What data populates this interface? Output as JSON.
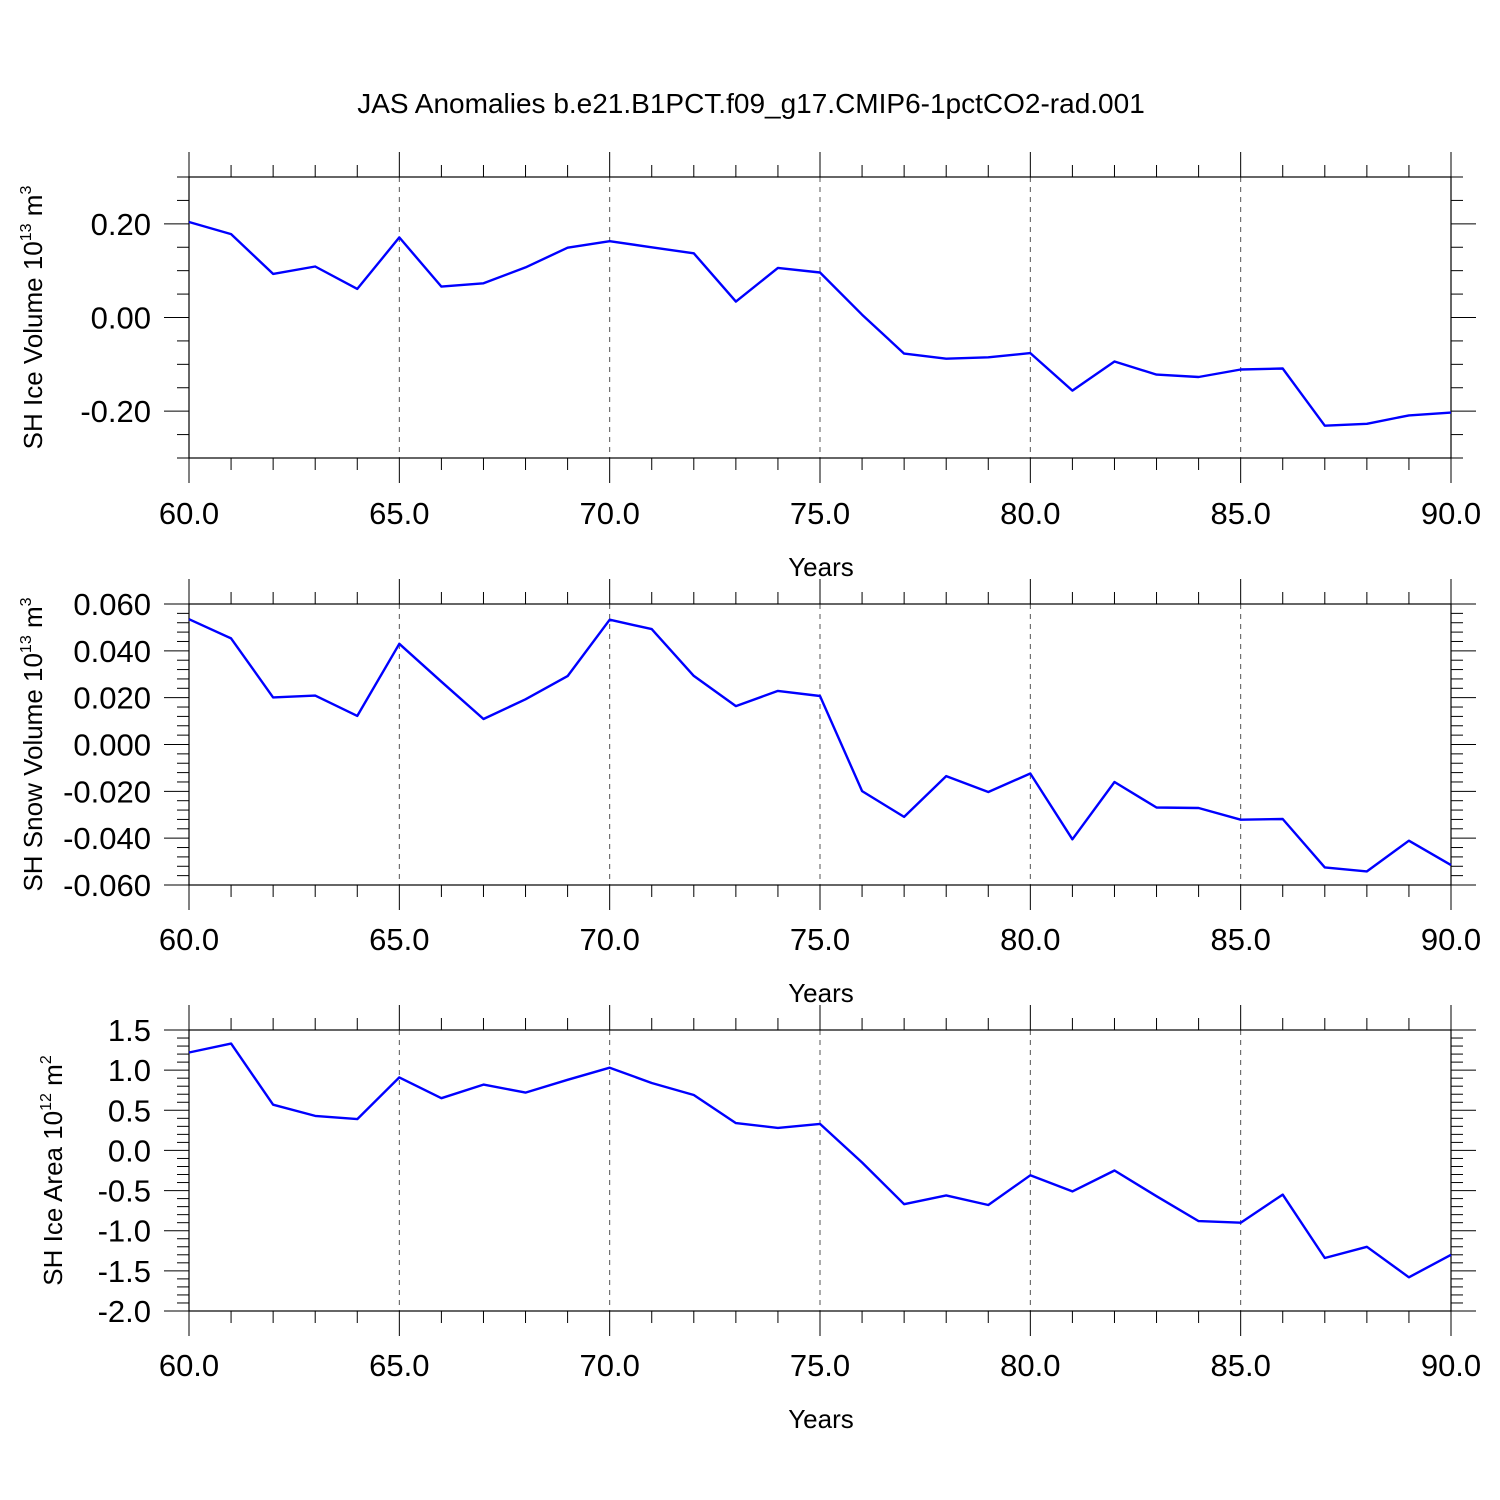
{
  "figure": {
    "title": "JAS Anomalies b.e21.B1PCT.f09_g17.CMIP6-1pctCO2-rad.001"
  },
  "chart_data": [
    {
      "type": "line",
      "title": "",
      "xlabel": "Years",
      "ylabel": {
        "text": "SH Ice Volume 10",
        "exp": "13",
        "unit": " m",
        "unit_exp": "3"
      },
      "xlim": [
        60,
        90
      ],
      "ylim": [
        -0.3,
        0.3
      ],
      "x_ticks": [
        60,
        65,
        70,
        75,
        80,
        85,
        90
      ],
      "x_tick_labels": [
        "60.0",
        "65.0",
        "70.0",
        "75.0",
        "80.0",
        "85.0",
        "90.0"
      ],
      "y_ticks": [
        -0.2,
        0.0,
        0.2
      ],
      "y_tick_labels": [
        "-0.20",
        "0.00",
        "0.20"
      ],
      "y_minor_step": 0.05,
      "x_minor_step": 1,
      "grid": "x-dashed",
      "color": "#0000ff",
      "x": [
        60,
        61,
        62,
        63,
        64,
        65,
        66,
        67,
        68,
        69,
        70,
        71,
        72,
        73,
        74,
        75,
        76,
        77,
        78,
        79,
        80,
        81,
        82,
        83,
        84,
        85,
        86,
        87,
        88,
        89,
        90
      ],
      "values": [
        0.204,
        0.178,
        0.093,
        0.109,
        0.061,
        0.171,
        0.066,
        0.073,
        0.107,
        0.149,
        0.163,
        0.15,
        0.137,
        0.034,
        0.106,
        0.096,
        0.006,
        -0.077,
        -0.088,
        -0.085,
        -0.076,
        -0.156,
        -0.094,
        -0.122,
        -0.127,
        -0.111,
        -0.109,
        -0.231,
        -0.227,
        -0.209,
        -0.203
      ]
    },
    {
      "type": "line",
      "title": "",
      "xlabel": "Years",
      "ylabel": {
        "text": "SH Snow Volume 10",
        "exp": "13",
        "unit": " m",
        "unit_exp": "3"
      },
      "xlim": [
        60,
        90
      ],
      "ylim": [
        -0.06,
        0.06
      ],
      "x_ticks": [
        60,
        65,
        70,
        75,
        80,
        85,
        90
      ],
      "x_tick_labels": [
        "60.0",
        "65.0",
        "70.0",
        "75.0",
        "80.0",
        "85.0",
        "90.0"
      ],
      "y_ticks": [
        -0.06,
        -0.04,
        -0.02,
        0.0,
        0.02,
        0.04,
        0.06
      ],
      "y_tick_labels": [
        "-0.060",
        "-0.040",
        "-0.020",
        "0.000",
        "0.020",
        "0.040",
        "0.060"
      ],
      "y_minor_step": 0.004,
      "x_minor_step": 1,
      "grid": "x-dashed",
      "color": "#0000ff",
      "x": [
        60,
        61,
        62,
        63,
        64,
        65,
        66,
        67,
        68,
        69,
        70,
        71,
        72,
        73,
        74,
        75,
        76,
        77,
        78,
        79,
        80,
        81,
        82,
        83,
        84,
        85,
        86,
        87,
        88,
        89,
        90
      ],
      "values": [
        0.0535,
        0.0453,
        0.0201,
        0.0209,
        0.0122,
        0.043,
        0.0268,
        0.0109,
        0.0193,
        0.0292,
        0.0533,
        0.0493,
        0.0293,
        0.0164,
        0.0229,
        0.0207,
        -0.0199,
        -0.0309,
        -0.0135,
        -0.0203,
        -0.0124,
        -0.0405,
        -0.016,
        -0.0269,
        -0.0271,
        -0.0321,
        -0.0318,
        -0.0525,
        -0.0542,
        -0.0411,
        -0.0515
      ]
    },
    {
      "type": "line",
      "title": "",
      "xlabel": "Years",
      "ylabel": {
        "text": "SH Ice Area 10",
        "exp": "12",
        "unit": " m",
        "unit_exp": "2"
      },
      "xlim": [
        60,
        90
      ],
      "ylim": [
        -2.0,
        1.5
      ],
      "x_ticks": [
        60,
        65,
        70,
        75,
        80,
        85,
        90
      ],
      "x_tick_labels": [
        "60.0",
        "65.0",
        "70.0",
        "75.0",
        "80.0",
        "85.0",
        "90.0"
      ],
      "y_ticks": [
        -2.0,
        -1.5,
        -1.0,
        -0.5,
        0.0,
        0.5,
        1.0,
        1.5
      ],
      "y_tick_labels": [
        "-2.0",
        "-1.5",
        "-1.0",
        "-0.5",
        "0.0",
        "0.5",
        "1.0",
        "1.5"
      ],
      "y_minor_step": 0.1,
      "x_minor_step": 1,
      "grid": "x-dashed",
      "color": "#0000ff",
      "x": [
        60,
        61,
        62,
        63,
        64,
        65,
        66,
        67,
        68,
        69,
        70,
        71,
        72,
        73,
        74,
        75,
        76,
        77,
        78,
        79,
        80,
        81,
        82,
        83,
        84,
        85,
        86,
        87,
        88,
        89,
        90
      ],
      "values": [
        1.22,
        1.33,
        0.57,
        0.43,
        0.39,
        0.91,
        0.65,
        0.82,
        0.72,
        0.88,
        1.03,
        0.84,
        0.69,
        0.34,
        0.28,
        0.33,
        -0.15,
        -0.67,
        -0.56,
        -0.68,
        -0.31,
        -0.51,
        -0.25,
        -0.57,
        -0.88,
        -0.9,
        -0.55,
        -1.34,
        -1.2,
        -1.58,
        -1.3
      ]
    }
  ]
}
